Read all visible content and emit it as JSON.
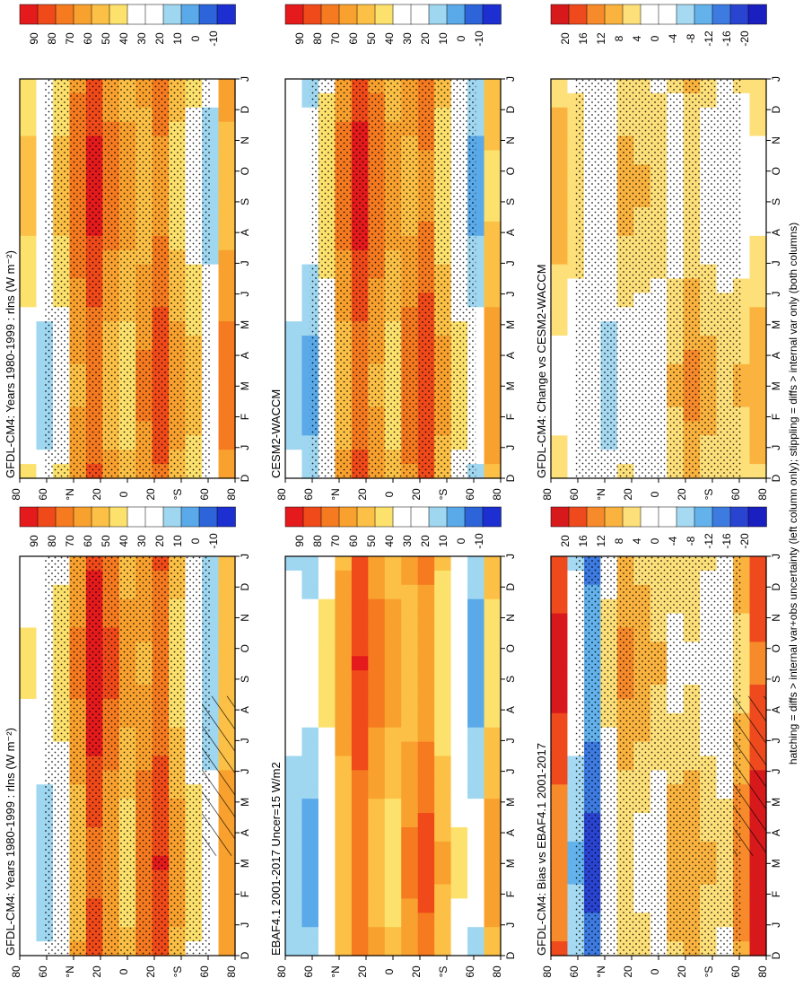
{
  "figure": {
    "footnote": "hatching = diffs > internal var+obs uncertainty (left column only); stippling = diffs > internal var only (both columns)",
    "lat_unit": "°",
    "lat_north": "N",
    "lat_south": "S"
  },
  "chart_data": [
    {
      "id": "model-clim",
      "type": "heatmap",
      "title": "GFDL-CM4: Years 1980-1999 : rlns (W m⁻²)",
      "xlabel": "month",
      "ylabel": "latitude",
      "x_ticks": [
        "D",
        "J",
        "F",
        "M",
        "A",
        "M",
        "J",
        "J",
        "A",
        "S",
        "O",
        "N",
        "D",
        "J"
      ],
      "y_ticks": [
        "80",
        "60",
        "°N",
        "20",
        "0",
        "20",
        "°S",
        "60",
        "80"
      ],
      "y_range": [
        -90,
        90
      ],
      "colorbar": {
        "ticks": [
          "90",
          "80",
          "70",
          "60",
          "50",
          "40",
          "30",
          "20",
          "10",
          "0",
          "-10"
        ],
        "range": [
          -10,
          95
        ]
      },
      "bands_by_lat": [
        {
          "lat": 85,
          "value": 35
        },
        {
          "lat": 70,
          "value": 28
        },
        {
          "lat": 55,
          "value": 40
        },
        {
          "lat": 40,
          "value": 62
        },
        {
          "lat": 25,
          "value": 85
        },
        {
          "lat": 10,
          "value": 70
        },
        {
          "lat": 0,
          "value": 55
        },
        {
          "lat": -10,
          "value": 68
        },
        {
          "lat": -25,
          "value": 78
        },
        {
          "lat": -40,
          "value": 55
        },
        {
          "lat": -55,
          "value": 40
        },
        {
          "lat": -70,
          "value": 25
        },
        {
          "lat": -85,
          "value": 60
        }
      ],
      "stippling": "most of domain",
      "hatching": "high southern latitudes, austral winter"
    },
    {
      "id": "cesm-clim",
      "type": "heatmap",
      "title": "GFDL-CM4: Years 1980-1999 : rlns (W m⁻²)",
      "xlabel": "month",
      "ylabel": "latitude",
      "x_ticks": [
        "D",
        "J",
        "F",
        "M",
        "A",
        "M",
        "J",
        "J",
        "A",
        "S",
        "O",
        "N",
        "D",
        "J"
      ],
      "y_ticks": [
        "80",
        "60",
        "°N",
        "20",
        "0",
        "20",
        "°S",
        "60",
        "80"
      ],
      "y_range": [
        -90,
        90
      ],
      "colorbar": {
        "ticks": [
          "90",
          "80",
          "70",
          "60",
          "50",
          "40",
          "30",
          "20",
          "10",
          "0",
          "-10"
        ],
        "range": [
          -10,
          95
        ]
      },
      "bands_by_lat": [
        {
          "lat": 85,
          "value": 45
        },
        {
          "lat": 70,
          "value": 30
        },
        {
          "lat": 55,
          "value": 45
        },
        {
          "lat": 40,
          "value": 68
        },
        {
          "lat": 25,
          "value": 80
        },
        {
          "lat": 10,
          "value": 65
        },
        {
          "lat": 0,
          "value": 55
        },
        {
          "lat": -10,
          "value": 62
        },
        {
          "lat": -25,
          "value": 75
        },
        {
          "lat": -40,
          "value": 55
        },
        {
          "lat": -55,
          "value": 45
        },
        {
          "lat": -70,
          "value": 28
        },
        {
          "lat": -85,
          "value": 65
        }
      ],
      "stippling": "most of domain",
      "hatching": "none"
    },
    {
      "id": "obs-clim",
      "type": "heatmap",
      "title": "EBAF4.1 2001-2017 Uncer=15 W/m2",
      "xlabel": "month",
      "ylabel": "latitude",
      "x_ticks": [
        "D",
        "J",
        "F",
        "M",
        "A",
        "M",
        "J",
        "J",
        "A",
        "S",
        "O",
        "N",
        "D",
        "J"
      ],
      "y_ticks": [
        "80",
        "60",
        "°N",
        "20",
        "0",
        "20",
        "°S",
        "60",
        "80"
      ],
      "y_range": [
        -90,
        90
      ],
      "colorbar": {
        "ticks": [
          "90",
          "80",
          "70",
          "60",
          "50",
          "40",
          "30",
          "20",
          "10",
          "0",
          "-10"
        ],
        "range": [
          -10,
          95
        ]
      },
      "bands_by_lat": [
        {
          "lat": 85,
          "value": 25
        },
        {
          "lat": 70,
          "value": 20
        },
        {
          "lat": 55,
          "value": 38
        },
        {
          "lat": 40,
          "value": 60
        },
        {
          "lat": 25,
          "value": 78
        },
        {
          "lat": 10,
          "value": 65
        },
        {
          "lat": 0,
          "value": 55
        },
        {
          "lat": -10,
          "value": 62
        },
        {
          "lat": -25,
          "value": 72
        },
        {
          "lat": -40,
          "value": 52
        },
        {
          "lat": -55,
          "value": 35
        },
        {
          "lat": -70,
          "value": 20
        },
        {
          "lat": -85,
          "value": 55
        }
      ],
      "stippling": "none",
      "hatching": "none"
    },
    {
      "id": "cesm-panel",
      "type": "heatmap",
      "title": "CESM2-WACCM",
      "xlabel": "month",
      "ylabel": "latitude",
      "x_ticks": [
        "D",
        "J",
        "F",
        "M",
        "A",
        "M",
        "J",
        "J",
        "A",
        "S",
        "O",
        "N",
        "D",
        "J"
      ],
      "y_ticks": [
        "80",
        "60",
        "°N",
        "20",
        "0",
        "20",
        "°S",
        "60",
        "80"
      ],
      "y_range": [
        -90,
        90
      ],
      "colorbar": {
        "ticks": [
          "90",
          "80",
          "70",
          "60",
          "50",
          "40",
          "30",
          "20",
          "10",
          "0",
          "-10"
        ],
        "range": [
          -10,
          95
        ]
      },
      "bands_by_lat": [
        {
          "lat": 85,
          "value": 30
        },
        {
          "lat": 70,
          "value": 22
        },
        {
          "lat": 55,
          "value": 42
        },
        {
          "lat": 40,
          "value": 65
        },
        {
          "lat": 25,
          "value": 82
        },
        {
          "lat": 10,
          "value": 68
        },
        {
          "lat": 0,
          "value": 55
        },
        {
          "lat": -10,
          "value": 66
        },
        {
          "lat": -25,
          "value": 76
        },
        {
          "lat": -40,
          "value": 54
        },
        {
          "lat": -55,
          "value": 38
        },
        {
          "lat": -70,
          "value": 22
        },
        {
          "lat": -85,
          "value": 58
        }
      ],
      "stippling": "most of domain",
      "hatching": "none"
    },
    {
      "id": "bias-vs-obs",
      "type": "heatmap",
      "title": "GFDL-CM4: Bias vs EBAF4.1 2001-2017",
      "xlabel": "month",
      "ylabel": "latitude",
      "x_ticks": [
        "D",
        "J",
        "F",
        "M",
        "A",
        "M",
        "J",
        "J",
        "A",
        "S",
        "O",
        "N",
        "D",
        "J"
      ],
      "y_ticks": [
        "80",
        "60",
        "°N",
        "20",
        "0",
        "20",
        "°S",
        "60",
        "80"
      ],
      "y_range": [
        -90,
        90
      ],
      "colorbar": {
        "ticks": [
          "20",
          "16",
          "12",
          "8",
          "4",
          "0",
          "-4",
          "-8",
          "-12",
          "-16",
          "-20"
        ],
        "range": [
          -22,
          22
        ]
      },
      "bands_by_lat": [
        {
          "lat": 85,
          "value": 16
        },
        {
          "lat": 70,
          "value": -4
        },
        {
          "lat": 55,
          "value": -12
        },
        {
          "lat": 40,
          "value": 2
        },
        {
          "lat": 25,
          "value": 8
        },
        {
          "lat": 10,
          "value": 6
        },
        {
          "lat": 0,
          "value": 4
        },
        {
          "lat": -10,
          "value": 6
        },
        {
          "lat": -25,
          "value": 7
        },
        {
          "lat": -40,
          "value": 4
        },
        {
          "lat": -55,
          "value": 2
        },
        {
          "lat": -70,
          "value": 10
        },
        {
          "lat": -85,
          "value": 18
        }
      ],
      "stippling": "most of domain",
      "hatching": "Arctic summer negative bias; Antarctic winter positive bias"
    },
    {
      "id": "change-vs-cesm",
      "type": "heatmap",
      "title": "GFDL-CM4: Change vs CESM2-WACCM",
      "xlabel": "month",
      "ylabel": "latitude",
      "x_ticks": [
        "D",
        "J",
        "F",
        "M",
        "A",
        "M",
        "J",
        "J",
        "A",
        "S",
        "O",
        "N",
        "D",
        "J"
      ],
      "y_ticks": [
        "80",
        "60",
        "°N",
        "20",
        "0",
        "20",
        "°S",
        "60",
        "80"
      ],
      "y_range": [
        -90,
        90
      ],
      "colorbar": {
        "ticks": [
          "20",
          "16",
          "12",
          "8",
          "4",
          "0",
          "-4",
          "-8",
          "-12",
          "-16",
          "-20"
        ],
        "range": [
          -22,
          22
        ]
      },
      "bands_by_lat": [
        {
          "lat": 85,
          "value": 6
        },
        {
          "lat": 70,
          "value": 3
        },
        {
          "lat": 55,
          "value": 0
        },
        {
          "lat": 40,
          "value": -2
        },
        {
          "lat": 25,
          "value": 5
        },
        {
          "lat": 10,
          "value": 4
        },
        {
          "lat": 0,
          "value": 3
        },
        {
          "lat": -10,
          "value": 4
        },
        {
          "lat": -25,
          "value": 8
        },
        {
          "lat": -40,
          "value": 5
        },
        {
          "lat": -55,
          "value": 3
        },
        {
          "lat": -70,
          "value": 4
        },
        {
          "lat": -85,
          "value": 6
        }
      ],
      "stippling": "most of domain",
      "hatching": "none"
    }
  ]
}
